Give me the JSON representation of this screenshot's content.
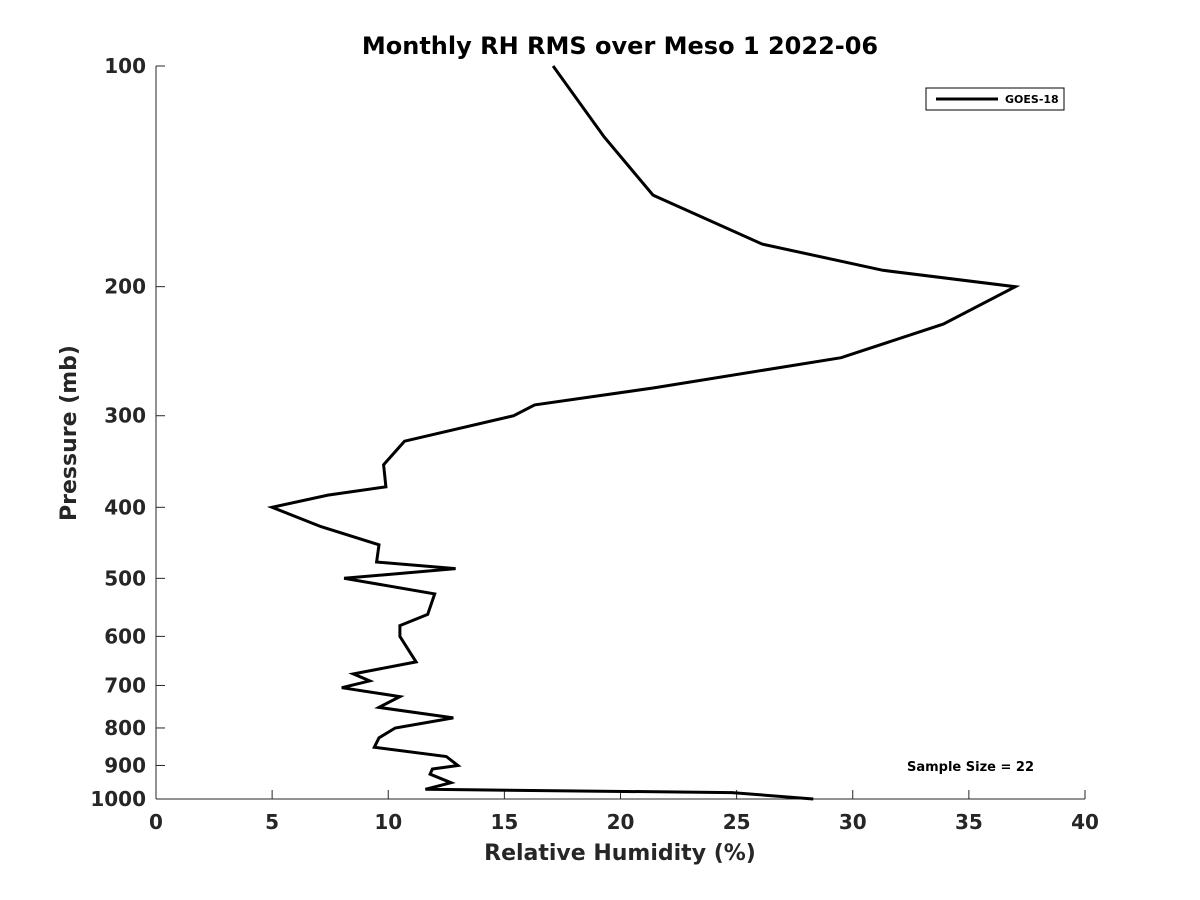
{
  "chart_data": {
    "type": "line",
    "title": "Monthly RH RMS over Meso 1  2022-06",
    "xlabel": "Relative Humidity (%)",
    "ylabel": "Pressure (mb)",
    "xlim": [
      0,
      40
    ],
    "ylim": [
      100,
      1000
    ],
    "y_scale": "log",
    "y_reversed": true,
    "x_ticks": [
      0,
      5,
      10,
      15,
      20,
      25,
      30,
      35,
      40
    ],
    "y_ticks": [
      100,
      200,
      300,
      400,
      500,
      600,
      700,
      800,
      900,
      1000
    ],
    "grid": false,
    "legend_position": "top-right",
    "series": [
      {
        "name": "GOES-18",
        "color": "#000000",
        "points": [
          [
            17.1,
            100
          ],
          [
            19.3,
            125
          ],
          [
            21.4,
            150
          ],
          [
            26.1,
            175
          ],
          [
            31.3,
            190
          ],
          [
            37.0,
            200
          ],
          [
            33.9,
            225
          ],
          [
            29.5,
            250
          ],
          [
            21.4,
            275
          ],
          [
            16.3,
            290
          ],
          [
            15.4,
            300
          ],
          [
            10.7,
            325
          ],
          [
            9.8,
            350
          ],
          [
            9.9,
            375
          ],
          [
            7.4,
            385
          ],
          [
            5.0,
            400
          ],
          [
            7.1,
            425
          ],
          [
            9.6,
            450
          ],
          [
            9.5,
            475
          ],
          [
            12.9,
            485
          ],
          [
            8.1,
            500
          ],
          [
            12.0,
            525
          ],
          [
            11.7,
            560
          ],
          [
            10.5,
            580
          ],
          [
            10.5,
            600
          ],
          [
            11.2,
            650
          ],
          [
            8.5,
            675
          ],
          [
            9.2,
            690
          ],
          [
            8.0,
            705
          ],
          [
            10.5,
            725
          ],
          [
            9.6,
            750
          ],
          [
            12.8,
            775
          ],
          [
            10.3,
            800
          ],
          [
            9.6,
            825
          ],
          [
            9.4,
            850
          ],
          [
            12.5,
            875
          ],
          [
            13.0,
            900
          ],
          [
            11.9,
            910
          ],
          [
            11.8,
            925
          ],
          [
            12.7,
            950
          ],
          [
            11.6,
            970
          ],
          [
            24.8,
            980
          ],
          [
            28.3,
            1000
          ]
        ]
      }
    ],
    "annotations": [
      {
        "text": "Sample Size = 22"
      }
    ]
  }
}
